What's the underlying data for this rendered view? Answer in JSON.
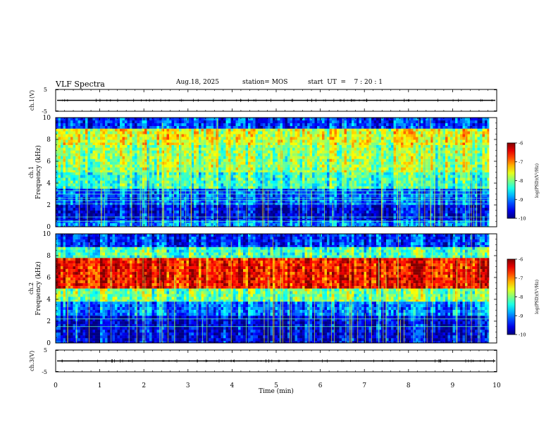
{
  "header": {
    "title": "VLF Spectra",
    "date": "Aug.18, 2025",
    "station": "station= MOS",
    "start_ut": "start  UT  =    7 : 20 : 1"
  },
  "chart_data": [
    {
      "type": "line",
      "name": "ch1-waveform",
      "ylabel": "ch.1(V)",
      "ylim": [
        -5,
        5
      ],
      "yticks": [
        "5",
        "-5"
      ],
      "xlim": [
        0,
        10
      ],
      "trace_value": 0
    },
    {
      "type": "heatmap",
      "name": "ch1-spectrogram",
      "ylabel": "ch.1\nFrequency (kHz)",
      "ylim": [
        0,
        10
      ],
      "yticks": [
        "10",
        "8",
        "6",
        "4",
        "2",
        "0"
      ],
      "xlim": [
        0,
        9.83
      ],
      "colorbar": {
        "label": "log(PSD)(V²/Hz)",
        "range": [
          -10,
          -6
        ],
        "ticks": [
          "-6",
          "-7",
          "-8",
          "-9",
          "-10"
        ]
      },
      "bands": [
        {
          "f0": 0,
          "f1": 0.6,
          "level": -9.0
        },
        {
          "f0": 0.6,
          "f1": 2.0,
          "level": -9.6
        },
        {
          "f0": 2.0,
          "f1": 3.5,
          "level": -9.2
        },
        {
          "f0": 3.5,
          "f1": 5.0,
          "level": -8.3
        },
        {
          "f0": 5.0,
          "f1": 7.5,
          "level": -7.9
        },
        {
          "f0": 7.5,
          "f1": 9.0,
          "level": -7.6
        },
        {
          "f0": 9.0,
          "f1": 10.0,
          "level": -9.3
        }
      ],
      "tone_lines_khz": [
        0.5,
        0.9,
        2.1,
        2.4,
        2.6,
        3.0,
        3.3
      ]
    },
    {
      "type": "heatmap",
      "name": "ch2-spectrogram",
      "ylabel": "ch.2\nFrequency (kHz)",
      "ylim": [
        0,
        10
      ],
      "yticks": [
        "10",
        "8",
        "6",
        "4",
        "2",
        "0"
      ],
      "xlim": [
        0,
        9.83
      ],
      "colorbar": {
        "label": "log(PSD)(V²/Hz)",
        "range": [
          -10,
          -6
        ],
        "ticks": [
          "-6",
          "-7",
          "-8",
          "-9",
          "-10"
        ]
      },
      "bands": [
        {
          "f0": 0,
          "f1": 2.5,
          "level": -9.6
        },
        {
          "f0": 2.5,
          "f1": 3.8,
          "level": -9.0
        },
        {
          "f0": 3.8,
          "f1": 5.0,
          "level": -8.0
        },
        {
          "f0": 5.0,
          "f1": 7.8,
          "level": -6.5
        },
        {
          "f0": 7.8,
          "f1": 8.8,
          "level": -8.2
        },
        {
          "f0": 8.8,
          "f1": 10.0,
          "level": -9.3
        }
      ],
      "tone_lines_khz": [
        1.5,
        2.2
      ]
    },
    {
      "type": "line",
      "name": "ch3-waveform",
      "ylabel": "ch.3(V)",
      "ylim": [
        -5,
        5
      ],
      "yticks": [
        "5",
        "-5"
      ],
      "xlim": [
        0,
        10
      ],
      "trace_value": 0
    }
  ],
  "x_axis": {
    "label": "Time (min)",
    "range": [
      0,
      10
    ],
    "ticks": [
      "0",
      "1",
      "2",
      "3",
      "4",
      "5",
      "6",
      "7",
      "8",
      "9",
      "10"
    ]
  }
}
